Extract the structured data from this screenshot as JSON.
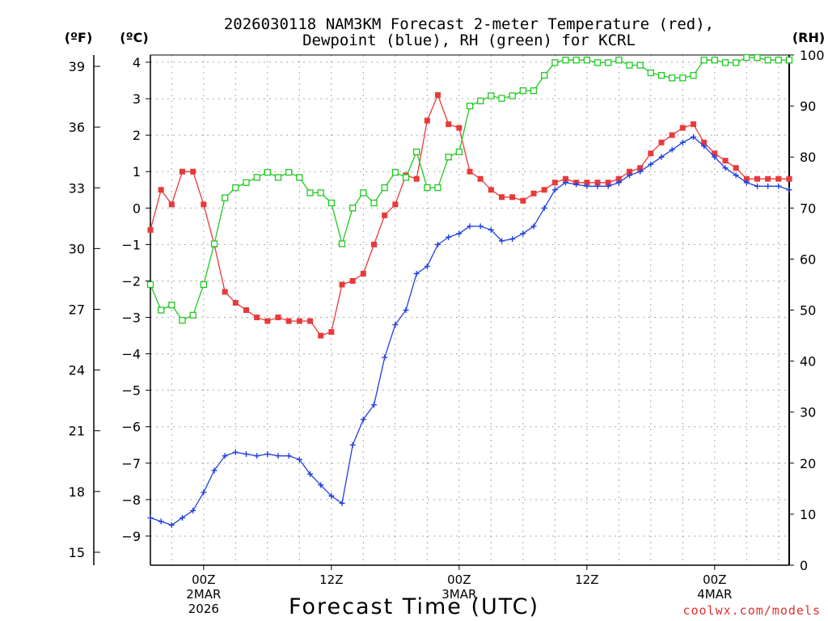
{
  "chart_data": {
    "type": "line",
    "title": [
      "2026030118 NAM3KM Forecast 2-meter Temperature (red),",
      "Dewpoint (blue), RH (green) for KCRL"
    ],
    "xlabel": "Forecast Time (UTC)",
    "credit": "coolwx.com/models",
    "y_left_inner": {
      "unit": "(ºC)",
      "ylim": [
        -9.8,
        4.2
      ],
      "ticks": [
        "4",
        "3",
        "2",
        "1",
        "0",
        "-1",
        "-2",
        "-3",
        "-4",
        "-5",
        "-6",
        "-7",
        "-8",
        "-9"
      ]
    },
    "y_left_outer": {
      "unit": "(ºF)",
      "ticks": [
        "39",
        "36",
        "33",
        "30",
        "27",
        "24",
        "21",
        "18",
        "15"
      ]
    },
    "y_right": {
      "unit": "(RH)",
      "ylim": [
        0,
        100
      ],
      "ticks": [
        "100",
        "90",
        "80",
        "70",
        "60",
        "50",
        "40",
        "30",
        "20",
        "10",
        "0"
      ]
    },
    "x": {
      "start_hour": 19,
      "end_hour": 79,
      "step_hours": 1
    },
    "x_ticks": [
      {
        "hour": 24,
        "label": "00Z",
        "sub": [
          "2MAR",
          "2026"
        ]
      },
      {
        "hour": 36,
        "label": "12Z",
        "sub": []
      },
      {
        "hour": 48,
        "label": "00Z",
        "sub": [
          "3MAR"
        ]
      },
      {
        "hour": 60,
        "label": "12Z",
        "sub": []
      },
      {
        "hour": 72,
        "label": "00Z",
        "sub": [
          "4MAR"
        ]
      }
    ],
    "series": [
      {
        "name": "Temperature",
        "unit": "C",
        "color": "#e83a3a",
        "marker": "filled-square",
        "values": [
          -0.6,
          0.5,
          0.1,
          1.0,
          1.0,
          0.1,
          -1.0,
          -2.3,
          -2.6,
          -2.8,
          -3.0,
          -3.1,
          -3.0,
          -3.1,
          -3.1,
          -3.1,
          -3.5,
          -3.4,
          -2.1,
          -2.0,
          -1.8,
          -1.0,
          -0.2,
          0.1,
          0.9,
          0.8,
          2.4,
          3.1,
          2.3,
          2.2,
          1.0,
          0.8,
          0.5,
          0.3,
          0.3,
          0.2,
          0.4,
          0.5,
          0.7,
          0.8,
          0.7,
          0.7,
          0.7,
          0.7,
          0.8,
          1.0,
          1.1,
          1.5,
          1.8,
          2.0,
          2.2,
          2.3,
          1.8,
          1.5,
          1.3,
          1.1,
          0.8,
          0.8,
          0.8,
          0.8,
          0.8
        ]
      },
      {
        "name": "Dewpoint",
        "unit": "C",
        "color": "#2040e0",
        "marker": "plus",
        "values": [
          -8.5,
          -8.6,
          -8.7,
          -8.5,
          -8.3,
          -7.8,
          -7.2,
          -6.8,
          -6.7,
          -6.75,
          -6.8,
          -6.75,
          -6.8,
          -6.8,
          -6.9,
          -7.3,
          -7.6,
          -7.9,
          -8.1,
          -6.5,
          -5.8,
          -5.4,
          -4.1,
          -3.2,
          -2.8,
          -1.8,
          -1.6,
          -1.0,
          -0.8,
          -0.7,
          -0.5,
          -0.5,
          -0.6,
          -0.9,
          -0.85,
          -0.7,
          -0.5,
          0.0,
          0.5,
          0.7,
          0.65,
          0.6,
          0.6,
          0.6,
          0.7,
          0.9,
          1.0,
          1.2,
          1.4,
          1.6,
          1.8,
          1.95,
          1.7,
          1.4,
          1.1,
          0.9,
          0.7,
          0.6,
          0.6,
          0.6,
          0.5
        ]
      },
      {
        "name": "RH",
        "unit": "%",
        "color": "#20c820",
        "marker": "open-square",
        "values": [
          55,
          50,
          51,
          48,
          49,
          55,
          63,
          72,
          74,
          75,
          76,
          77,
          76,
          77,
          76,
          73,
          73,
          71,
          63,
          70,
          73,
          71,
          74,
          77,
          76,
          81,
          74,
          74,
          80,
          81,
          90,
          91,
          92,
          91.5,
          92,
          93,
          93,
          96,
          98.5,
          99,
          99,
          99,
          98.5,
          98.5,
          99,
          98,
          98,
          96.5,
          96,
          95.5,
          95.5,
          96,
          99,
          99,
          98.5,
          98.5,
          99.5,
          99.5,
          99,
          99,
          99
        ]
      }
    ]
  }
}
